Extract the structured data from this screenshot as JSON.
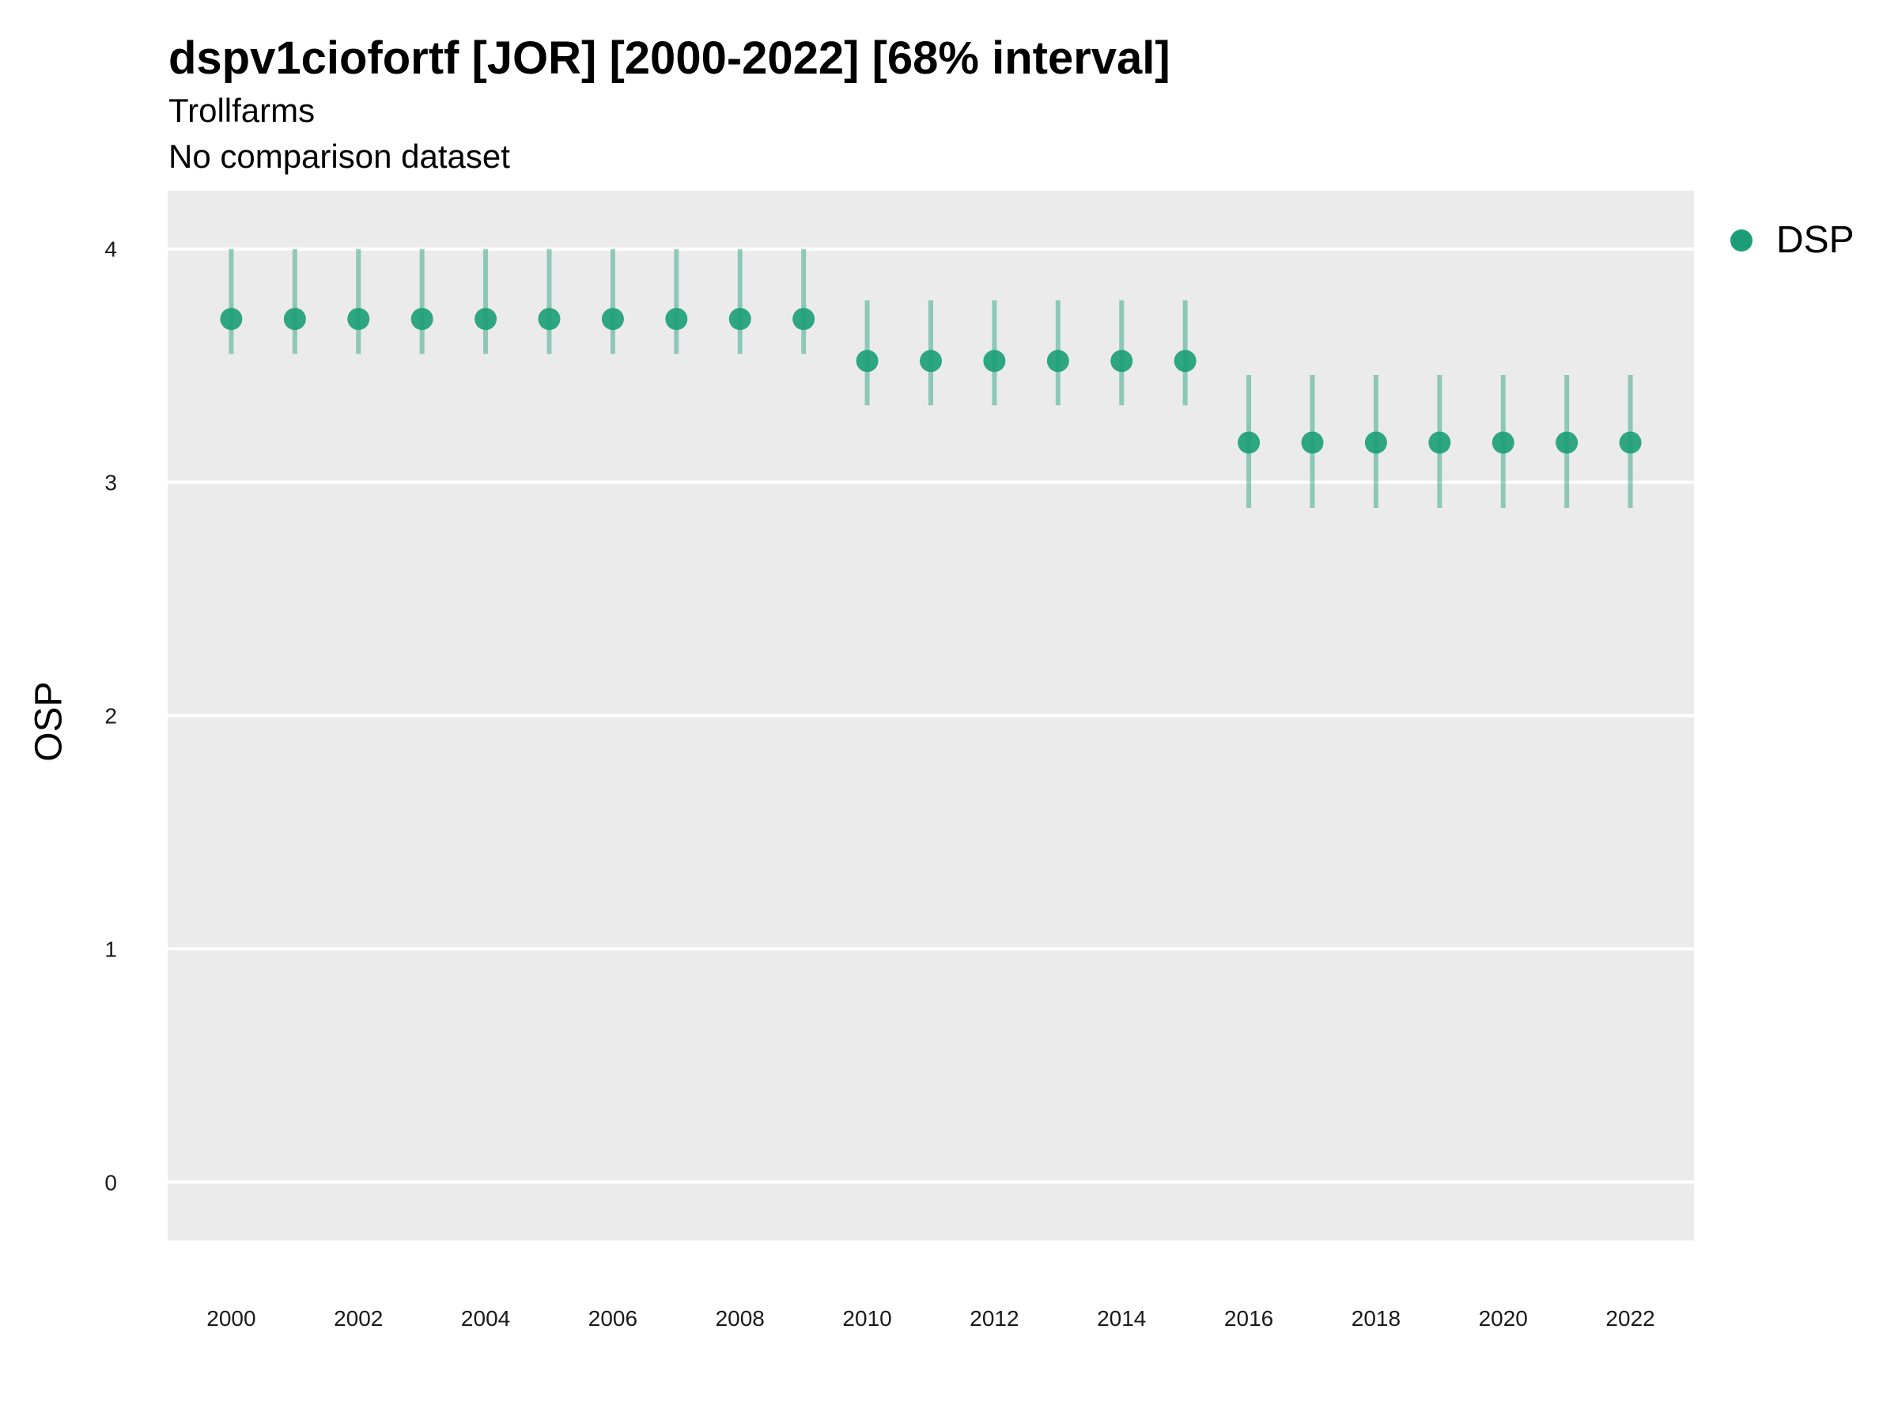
{
  "chart_data": {
    "type": "scatter",
    "title": "dspv1ciofortf [JOR] [2000-2022] [68% interval]",
    "subtitle": [
      "Trollfarms",
      "No comparison dataset"
    ],
    "xlabel": "",
    "ylabel": "OSP",
    "xlim": [
      1999,
      2023
    ],
    "ylim": [
      -0.25,
      4.25
    ],
    "y_ticks": [
      0,
      1,
      2,
      3,
      4
    ],
    "x_ticks": [
      2000,
      2002,
      2004,
      2006,
      2008,
      2010,
      2012,
      2014,
      2016,
      2018,
      2020,
      2022
    ],
    "grid": "horizontal",
    "legend_position": "right",
    "series": [
      {
        "name": "DSP",
        "color": "#1b9e77",
        "x": [
          2000,
          2001,
          2002,
          2003,
          2004,
          2005,
          2006,
          2007,
          2008,
          2009,
          2010,
          2011,
          2012,
          2013,
          2014,
          2015,
          2016,
          2017,
          2018,
          2019,
          2020,
          2021,
          2022
        ],
        "y": [
          3.7,
          3.7,
          3.7,
          3.7,
          3.7,
          3.7,
          3.7,
          3.7,
          3.7,
          3.7,
          3.52,
          3.52,
          3.52,
          3.52,
          3.52,
          3.52,
          3.17,
          3.17,
          3.17,
          3.17,
          3.17,
          3.17,
          3.17
        ],
        "low": [
          3.55,
          3.55,
          3.55,
          3.55,
          3.55,
          3.55,
          3.55,
          3.55,
          3.55,
          3.55,
          3.33,
          3.33,
          3.33,
          3.33,
          3.33,
          3.33,
          2.89,
          2.89,
          2.89,
          2.89,
          2.89,
          2.89,
          2.89
        ],
        "high": [
          4.0,
          4.0,
          4.0,
          4.0,
          4.0,
          4.0,
          4.0,
          4.0,
          4.0,
          4.0,
          3.78,
          3.78,
          3.78,
          3.78,
          3.78,
          3.78,
          3.46,
          3.46,
          3.46,
          3.46,
          3.46,
          3.46,
          3.46
        ]
      }
    ]
  },
  "colors": {
    "panel_background": "#ebebeb",
    "gridline": "#ffffff",
    "series": "#1b9e77"
  }
}
